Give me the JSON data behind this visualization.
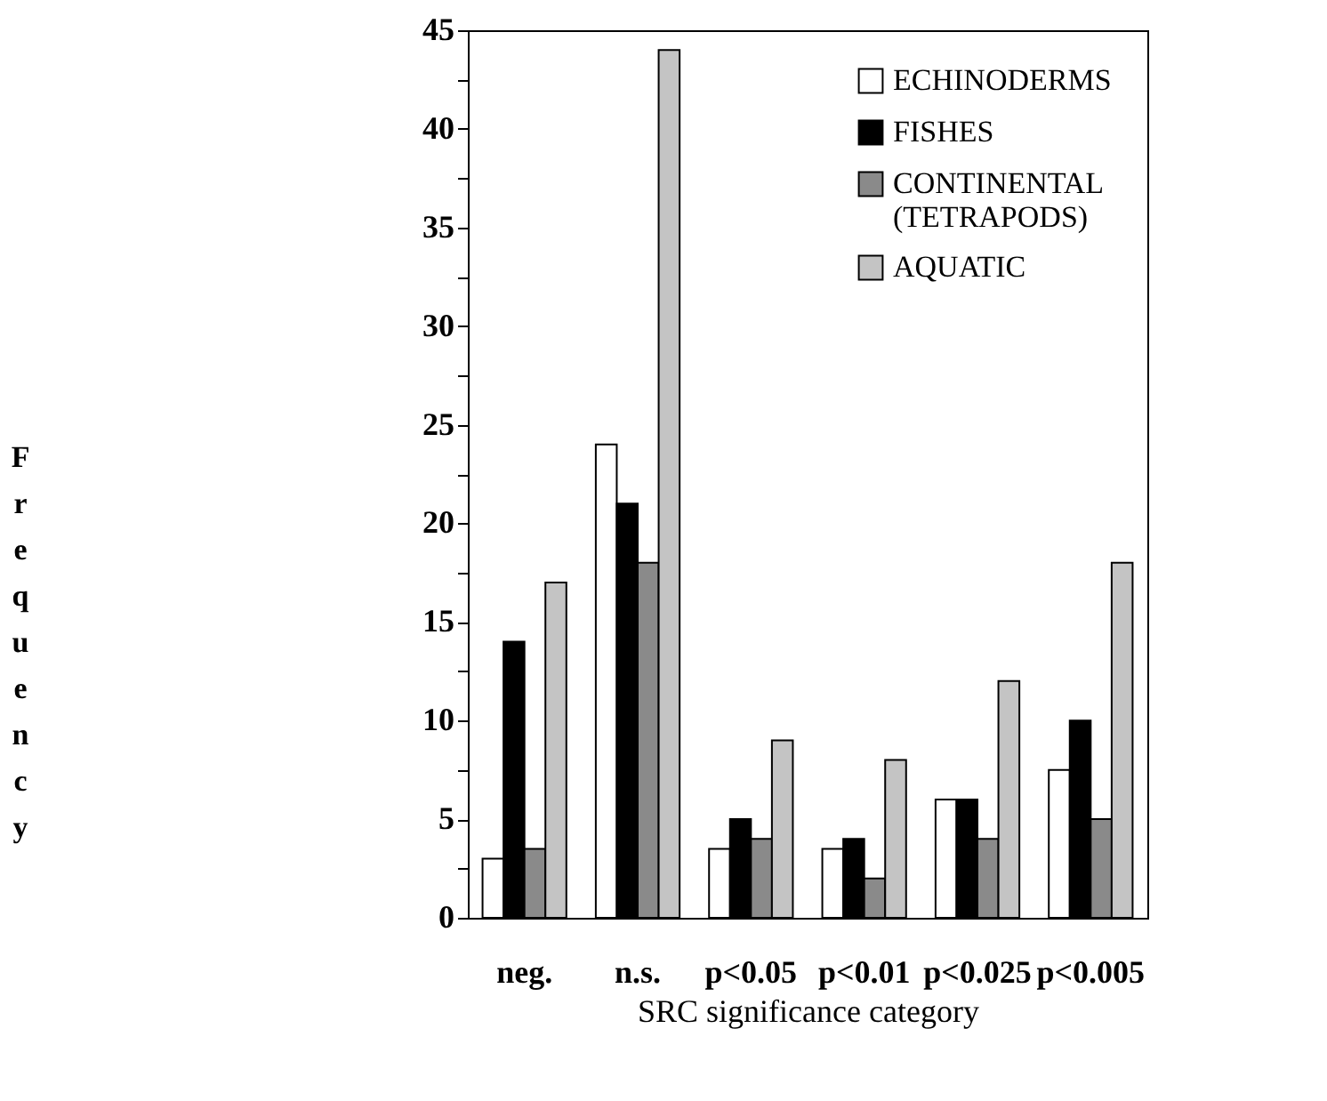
{
  "chart_data": {
    "type": "bar",
    "xlabel": "SRC significance category",
    "ylabel": "Frequency",
    "categories": [
      "neg.",
      "n.s.",
      "p<0.05",
      "p<0.01",
      "p<0.025",
      "p<0.005"
    ],
    "series": [
      {
        "name": "ECHINODERMS",
        "color": "#ffffff",
        "values": [
          3,
          24,
          3.5,
          3.5,
          6,
          7.5
        ]
      },
      {
        "name": "FISHES",
        "color": "#000000",
        "values": [
          14,
          21,
          5,
          4,
          6,
          10
        ]
      },
      {
        "name": "CONTINENTAL (TETRAPODS)",
        "color": "#8a8a8a",
        "values": [
          3.5,
          18,
          4,
          2,
          4,
          5
        ]
      },
      {
        "name": "AQUATIC",
        "color": "#c4c4c4",
        "values": [
          17,
          44,
          9,
          8,
          12,
          18
        ]
      }
    ],
    "ylim": [
      0,
      45
    ],
    "yticks": [
      0,
      {
        "value": 2.5,
        "label": null
      },
      5,
      {
        "value": 7.5,
        "label": null
      },
      10,
      {
        "value": 12.5,
        "label": null
      },
      15,
      {
        "value": 17.5,
        "label": null
      },
      20,
      {
        "value": 22.5,
        "label": null
      },
      25,
      {
        "value": 27.5,
        "label": null
      },
      30,
      {
        "value": 32.5,
        "label": null
      },
      35,
      {
        "value": 37.5,
        "label": null
      },
      40,
      {
        "value": 42.5,
        "label": null
      },
      45
    ],
    "grid": false,
    "legend": "top right"
  }
}
